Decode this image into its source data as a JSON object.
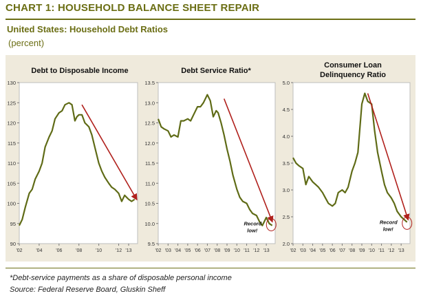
{
  "header": {
    "title": "CHART 1: HOUSEHOLD BALANCE SHEET REPAIR",
    "subtitle": "United States: Household Debt Ratios",
    "units": "(percent)"
  },
  "footer": {
    "footnote": "*Debt-service payments as a share of disposable personal income",
    "source": "Source: Federal Reserve Board, Gluskin Sheff"
  },
  "colors": {
    "series": "#5f6b16",
    "arrow": "#b0201c",
    "panel_bg": "#efeadc",
    "plot_bg": "#ffffff",
    "title": "#6b6e14"
  },
  "chart_data": [
    {
      "type": "line",
      "title": "Debt to Disposable Income",
      "xlabel": "",
      "ylabel": "",
      "xlim": [
        2002,
        2013.9
      ],
      "ylim": [
        90,
        130
      ],
      "yticks": [
        90,
        95,
        100,
        105,
        110,
        115,
        120,
        125,
        130
      ],
      "ytick_labels": [
        "90",
        "95",
        "100",
        "105",
        "110",
        "115",
        "120",
        "125",
        "130"
      ],
      "xticks": [
        2002,
        2004,
        2006,
        2008,
        2010,
        2012,
        2013
      ],
      "xtick_labels": [
        "'02",
        "'04",
        "'06",
        "'08",
        "'10",
        "'12",
        "'13"
      ],
      "x": [
        2002,
        2002.3,
        2002.6,
        2003,
        2003.3,
        2003.6,
        2004,
        2004.3,
        2004.6,
        2005,
        2005.3,
        2005.6,
        2006,
        2006.3,
        2006.6,
        2007,
        2007.3,
        2007.6,
        2007.8,
        2008,
        2008.3,
        2008.6,
        2009,
        2009.3,
        2009.6,
        2010,
        2010.3,
        2010.6,
        2011,
        2011.3,
        2011.6,
        2012,
        2012.3,
        2012.6,
        2013,
        2013.3,
        2013.6
      ],
      "y": [
        94.5,
        96,
        99,
        102.5,
        103.5,
        106,
        108,
        110,
        114,
        116.5,
        118,
        121,
        122.5,
        123,
        124.5,
        125,
        124.5,
        120.5,
        121.5,
        122,
        122,
        120,
        119,
        117,
        114,
        110,
        108,
        106.5,
        105,
        104,
        103.5,
        102.5,
        100.5,
        102,
        101,
        100.5,
        101
      ],
      "trend_arrow": {
        "from": [
          2008.3,
          124.5
        ],
        "to": [
          2013.8,
          101
        ]
      },
      "annotation": null
    },
    {
      "type": "line",
      "title": "Debt Service Ratio*",
      "xlabel": "",
      "ylabel": "",
      "xlim": [
        2002,
        2013.9
      ],
      "ylim": [
        9.5,
        13.5
      ],
      "yticks": [
        9.5,
        10.0,
        10.5,
        11.0,
        11.5,
        12.0,
        12.5,
        13.0,
        13.5
      ],
      "ytick_labels": [
        "9.5",
        "10.0",
        "10.5",
        "11.0",
        "11.5",
        "12.0",
        "12.5",
        "13.0",
        "13.5"
      ],
      "xticks": [
        2002,
        2003,
        2004,
        2005,
        2006,
        2007,
        2008,
        2009,
        2010,
        2011,
        2012,
        2013
      ],
      "xtick_labels": [
        "'02",
        "'03",
        "'04",
        "'05",
        "'06",
        "'07",
        "'08",
        "'09",
        "'10",
        "'11",
        "'12",
        "'13"
      ],
      "x": [
        2002,
        2002.3,
        2002.6,
        2003,
        2003.3,
        2003.6,
        2004,
        2004.3,
        2004.6,
        2005,
        2005.3,
        2005.6,
        2006,
        2006.3,
        2006.6,
        2007,
        2007.3,
        2007.6,
        2007.9,
        2008.1,
        2008.4,
        2008.7,
        2009,
        2009.3,
        2009.6,
        2010,
        2010.3,
        2010.6,
        2011,
        2011.3,
        2011.6,
        2012,
        2012.3,
        2012.6,
        2013,
        2013.3,
        2013.6
      ],
      "y": [
        12.6,
        12.4,
        12.35,
        12.3,
        12.15,
        12.2,
        12.15,
        12.55,
        12.55,
        12.6,
        12.55,
        12.7,
        12.9,
        12.9,
        13.0,
        13.2,
        13.05,
        12.65,
        12.8,
        12.75,
        12.5,
        12.2,
        11.85,
        11.55,
        11.2,
        10.85,
        10.65,
        10.55,
        10.5,
        10.35,
        10.25,
        10.2,
        10.05,
        9.95,
        10.15,
        10.0,
        9.95
      ],
      "trend_arrow": {
        "from": [
          2008.7,
          13.1
        ],
        "to": [
          2013.6,
          10.05
        ]
      },
      "annotation": {
        "text_line1": "Record",
        "text_line2": "low!",
        "at": [
          2013.5,
          9.97
        ]
      }
    },
    {
      "type": "line",
      "title_line1": "Consumer Loan",
      "title_line2": "Delinquency Ratio",
      "xlabel": "",
      "ylabel": "",
      "xlim": [
        2002,
        2013.9
      ],
      "ylim": [
        2.0,
        5.0
      ],
      "yticks": [
        2.0,
        2.5,
        3.0,
        3.5,
        4.0,
        4.5,
        5.0
      ],
      "ytick_labels": [
        "2.0",
        "2.5",
        "3.0",
        "3.5",
        "4.0",
        "4.5",
        "5.0"
      ],
      "xticks": [
        2002,
        2003,
        2004,
        2005,
        2006,
        2007,
        2008,
        2009,
        2010,
        2011,
        2012,
        2013
      ],
      "xtick_labels": [
        "'02",
        "'03",
        "'04",
        "'05",
        "'06",
        "'07",
        "'08",
        "'09",
        "'10",
        "'11",
        "'12",
        "'13"
      ],
      "x": [
        2002,
        2002.3,
        2002.6,
        2003,
        2003.3,
        2003.6,
        2004,
        2004.3,
        2004.6,
        2005,
        2005.3,
        2005.6,
        2006,
        2006.3,
        2006.6,
        2007,
        2007.3,
        2007.6,
        2008,
        2008.3,
        2008.6,
        2009,
        2009.3,
        2009.6,
        2010,
        2010.3,
        2010.6,
        2011,
        2011.3,
        2011.6,
        2012,
        2012.3,
        2012.6,
        2013,
        2013.3,
        2013.6
      ],
      "y": [
        3.6,
        3.5,
        3.45,
        3.4,
        3.1,
        3.25,
        3.15,
        3.1,
        3.05,
        2.95,
        2.85,
        2.75,
        2.7,
        2.75,
        2.95,
        3.0,
        2.95,
        3.05,
        3.35,
        3.5,
        3.7,
        4.6,
        4.8,
        4.65,
        4.6,
        4.1,
        3.7,
        3.35,
        3.1,
        2.95,
        2.85,
        2.75,
        2.6,
        2.5,
        2.45,
        2.4
      ],
      "trend_arrow": {
        "from": [
          2009.6,
          4.8
        ],
        "to": [
          2013.7,
          2.45
        ]
      },
      "annotation": {
        "text_line1": "Record",
        "text_line2": "low!",
        "at": [
          2013.6,
          2.38
        ]
      }
    }
  ]
}
